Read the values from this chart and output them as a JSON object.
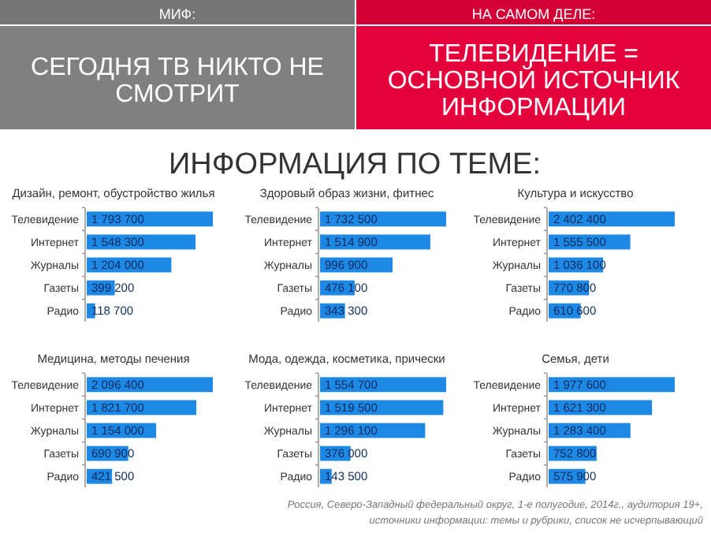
{
  "chart_data": [
    {
      "type": "other",
      "title": "МИФ:",
      "annotations": [
        "СЕГОДНЯ ТВ НИКТО НЕ СМОТРИТ"
      ],
      "color": "#808080"
    },
    {
      "type": "other",
      "title": "НА САМОМ ДЕЛЕ:",
      "annotations": [
        "ТЕЛЕВИДЕНИЕ = ОСНОВНОЙ ИСТОЧНИК ИНФОРМАЦИИ"
      ],
      "color": "#e4003a"
    },
    {
      "type": "other",
      "title": "ИНФОРМАЦИЯ ПО ТЕМЕ:"
    },
    {
      "type": "bar",
      "orientation": "horizontal",
      "title": "Дизайн, ремонт, обустройство жилья",
      "categories": [
        "Телевидение",
        "Интернет",
        "Журналы",
        "Газеты",
        "Радио"
      ],
      "values": [
        1793700,
        1548300,
        1204000,
        399200,
        118700
      ],
      "value_labels": [
        "1 793 700",
        "1 548 300",
        "1 204 000",
        "399 200",
        "118 700"
      ],
      "color": "#1e88e5"
    },
    {
      "type": "bar",
      "orientation": "horizontal",
      "title": "Здоровый образ жизни, фитнес",
      "categories": [
        "Телевидение",
        "Интернет",
        "Журналы",
        "Газеты",
        "Радио"
      ],
      "values": [
        1732500,
        1514900,
        996900,
        476100,
        343300
      ],
      "value_labels": [
        "1 732 500",
        "1 514 900",
        "996 900",
        "476 100",
        "343 300"
      ],
      "color": "#1e88e5"
    },
    {
      "type": "bar",
      "orientation": "horizontal",
      "title": "Культура и искусство",
      "categories": [
        "Телевидение",
        "Интернет",
        "Журналы",
        "Газеты",
        "Радио"
      ],
      "values": [
        2402400,
        1555500,
        1036100,
        770800,
        610600
      ],
      "value_labels": [
        "2 402 400",
        "1 555 500",
        "1 036 100",
        "770 800",
        "610 600"
      ],
      "color": "#1e88e5"
    },
    {
      "type": "bar",
      "orientation": "horizontal",
      "title": "Медицина, методы печения",
      "categories": [
        "Телевидение",
        "Интернет",
        "Журналы",
        "Газеты",
        "Радио"
      ],
      "values": [
        2096400,
        1821700,
        1154000,
        690900,
        421500
      ],
      "value_labels": [
        "2 096 400",
        "1 821 700",
        "1 154 000",
        "690 900",
        "421 500"
      ],
      "color": "#1e88e5"
    },
    {
      "type": "bar",
      "orientation": "horizontal",
      "title": "Мода, одежда, косметика, прически",
      "categories": [
        "Телевидение",
        "Интернет",
        "Журналы",
        "Газеты",
        "Радио"
      ],
      "values": [
        1554700,
        1519500,
        1296100,
        376000,
        143500
      ],
      "value_labels": [
        "1 554 700",
        "1 519 500",
        "1 296 100",
        "376 000",
        "143 500"
      ],
      "color": "#1e88e5"
    },
    {
      "type": "bar",
      "orientation": "horizontal",
      "title": "Семья, дети",
      "categories": [
        "Телевидение",
        "Интернет",
        "Журналы",
        "Газеты",
        "Радио"
      ],
      "values": [
        1977600,
        1621300,
        1283400,
        752800,
        575900
      ],
      "value_labels": [
        "1 977 600",
        "1 621 300",
        "1 283 400",
        "752 800",
        "575 900"
      ],
      "color": "#1e88e5"
    },
    {
      "type": "other",
      "annotations": [
        "Россия, Северо-Западный федеральный округ, 1-е полугодие, 2014г., аудитория 19+,",
        "источники информации: темы и рубрики, список не исчерпывающий"
      ]
    }
  ]
}
